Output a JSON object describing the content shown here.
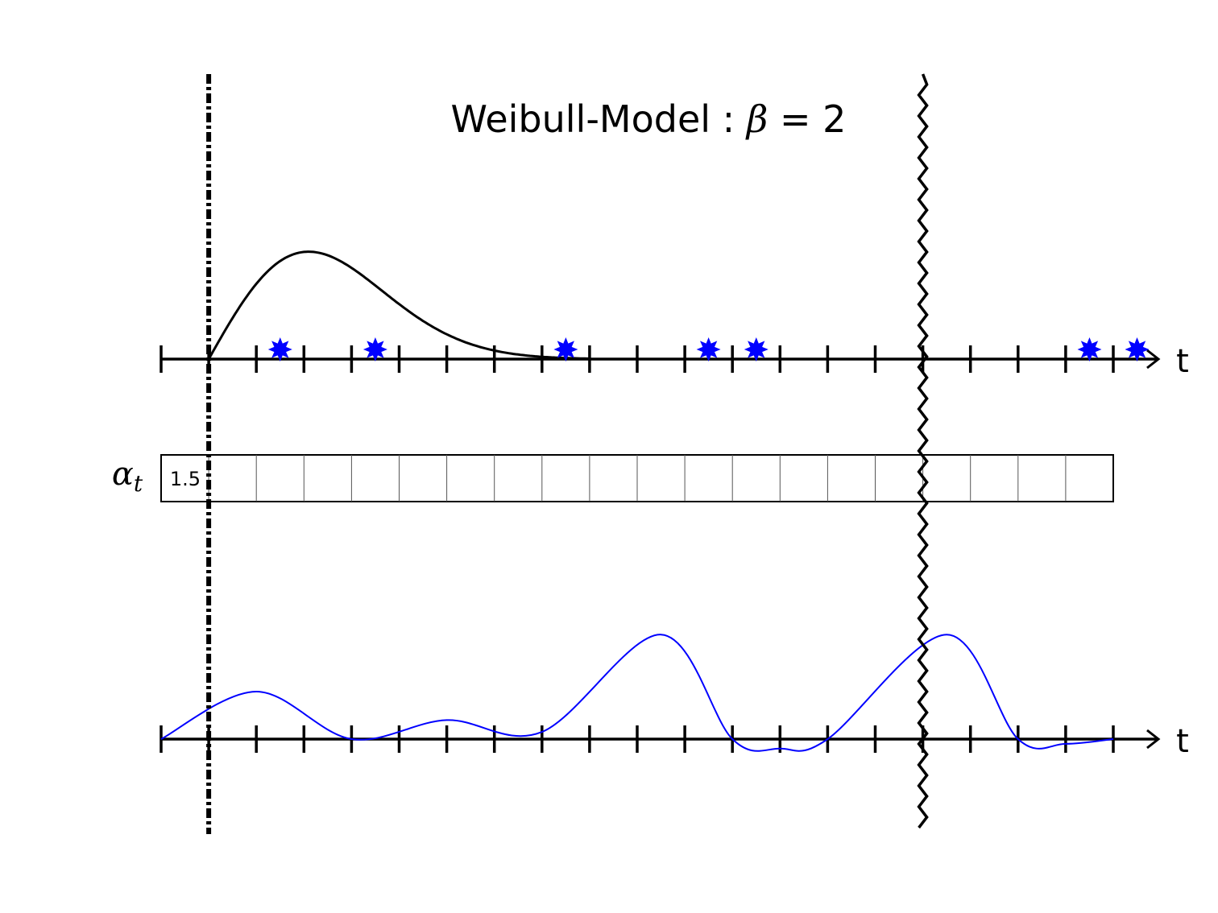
{
  "title": {
    "text": "Weibull-Model : ",
    "beta_symbol": "β",
    "equals": " = 2"
  },
  "axis_label": "t",
  "alpha_row": {
    "symbol": "α",
    "subscript": "t",
    "first_cell_value": "1.5",
    "cell_count": 20
  },
  "ticks": {
    "count": 21,
    "start": 0,
    "end": 20
  },
  "markers": {
    "start_line_at": 1,
    "wavy_line_at": 16
  },
  "events": [
    2.5,
    4.5,
    8.5,
    11.5,
    12.5,
    19.5,
    20.5
  ],
  "weibull_curve": {
    "beta": 2,
    "start": 1,
    "peak_at": 3.1,
    "peak_height": 2.3
  },
  "lower_curve": {
    "points": [
      [
        0,
        0
      ],
      [
        2,
        1.0
      ],
      [
        4,
        0
      ],
      [
        6,
        0.4
      ],
      [
        8,
        0.15
      ],
      [
        10.5,
        2.2
      ],
      [
        12,
        0
      ],
      [
        13,
        -0.2
      ],
      [
        14,
        0
      ],
      [
        16.5,
        2.2
      ],
      [
        18,
        0
      ],
      [
        19,
        -0.1
      ],
      [
        20,
        0
      ]
    ]
  },
  "colors": {
    "axis": "#000000",
    "event": "#0000ff",
    "lower_curve": "#0000ff",
    "grid": "#555555"
  }
}
